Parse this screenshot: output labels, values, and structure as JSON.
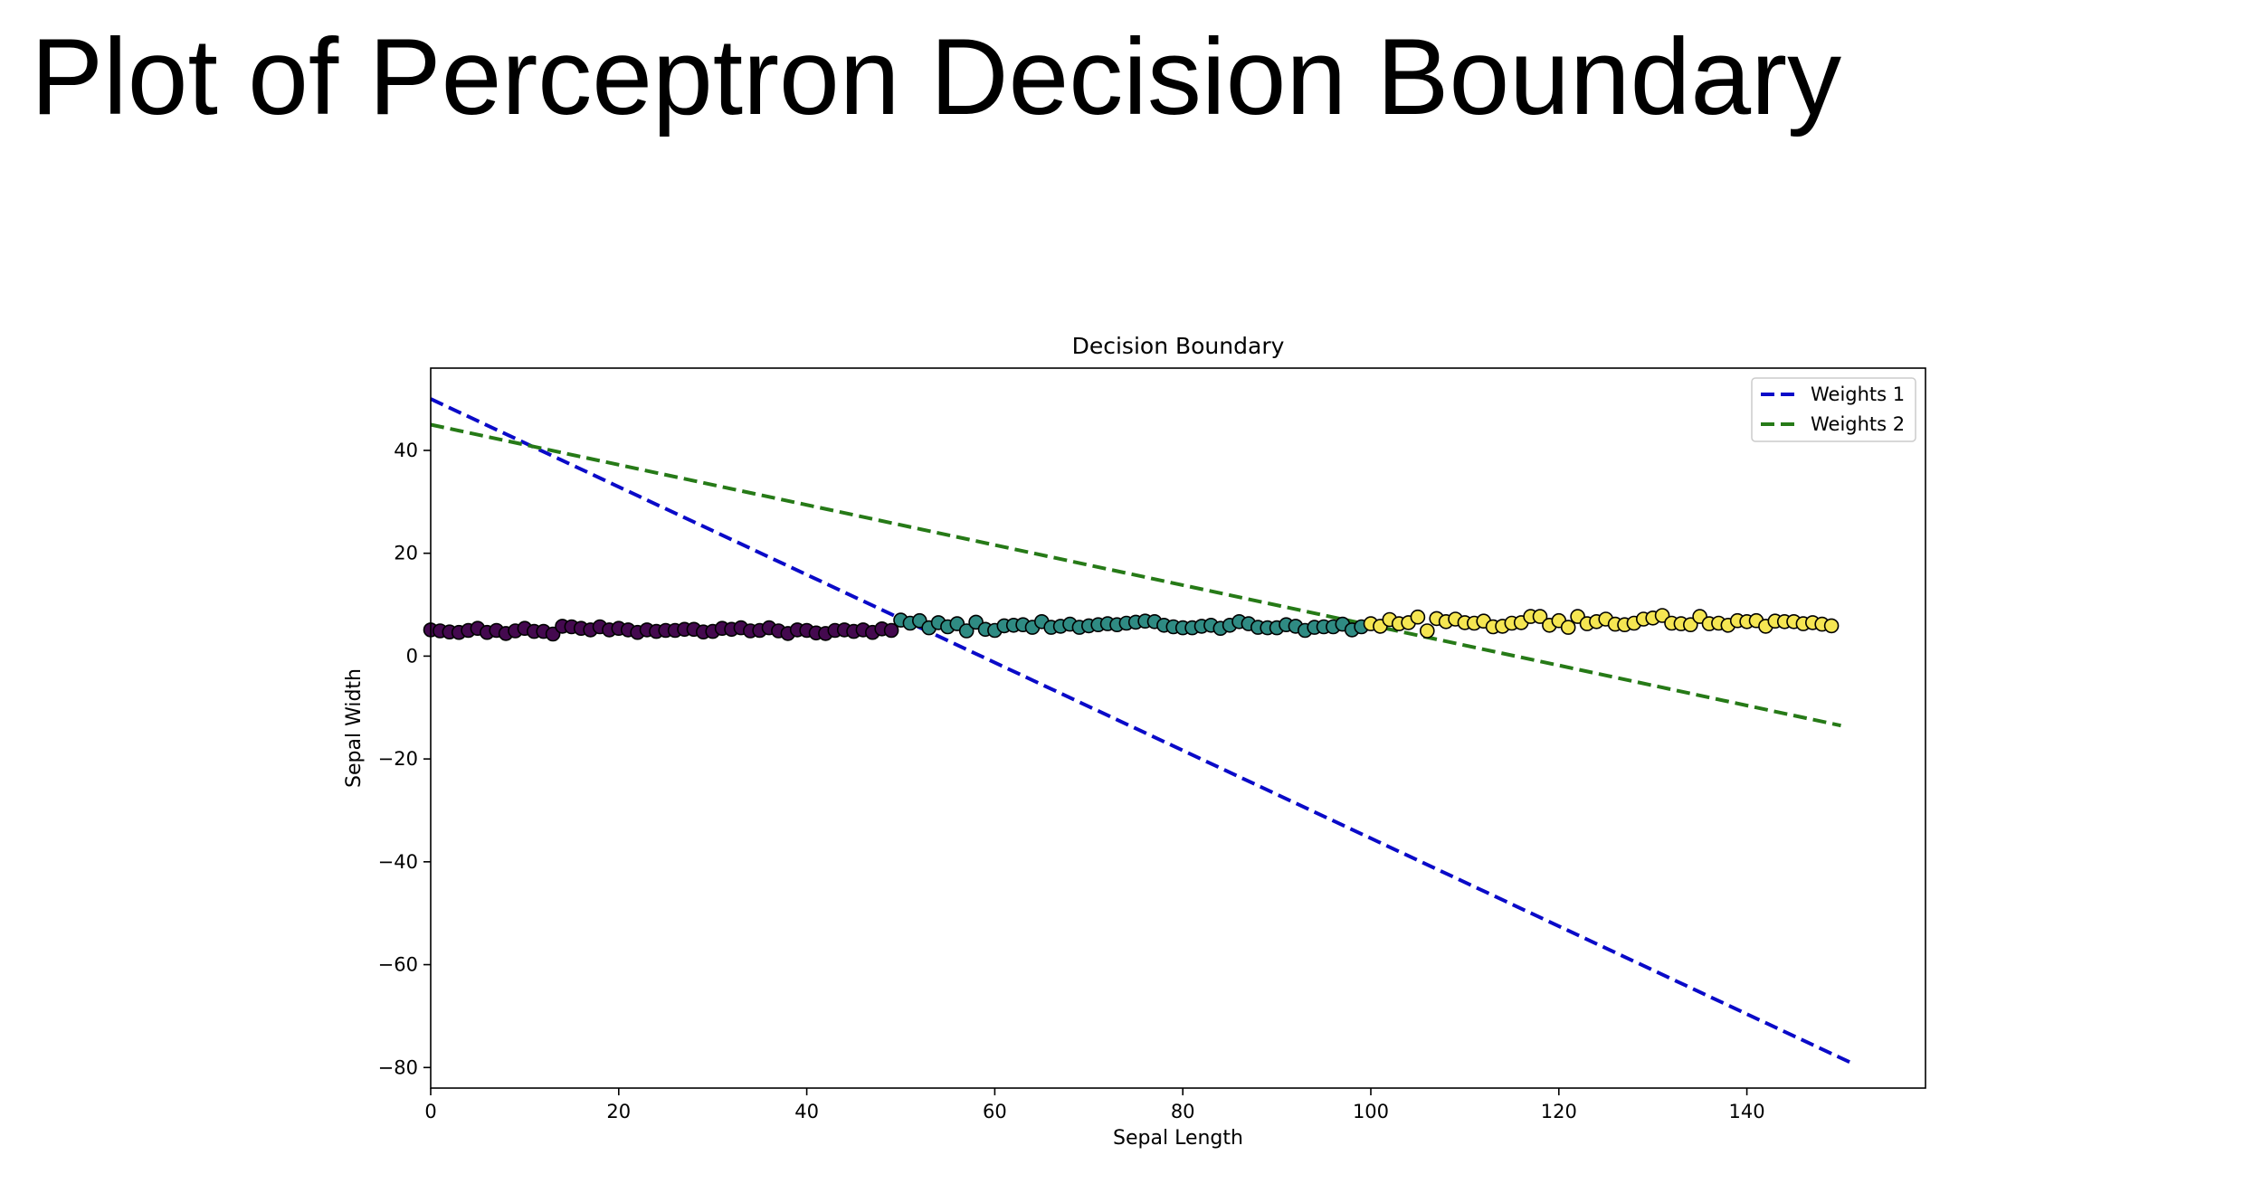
{
  "slide": {
    "title": "Plot of Perceptron Decision Boundary"
  },
  "chart_data": {
    "type": "scatter",
    "title": "Decision Boundary",
    "xlabel": "Sepal Length",
    "ylabel": "Sepal Width",
    "xlim": [
      0,
      159
    ],
    "ylim": [
      -84,
      56
    ],
    "xticks": [
      0,
      20,
      40,
      60,
      80,
      100,
      120,
      140
    ],
    "yticks": [
      -80,
      -60,
      -40,
      -20,
      0,
      20,
      40
    ],
    "xtick_labels": [
      "0",
      "20",
      "40",
      "60",
      "80",
      "100",
      "120",
      "140"
    ],
    "ytick_labels": [
      "−80",
      "−60",
      "−40",
      "−20",
      "0",
      "20",
      "40"
    ],
    "grid": false,
    "legend_position": "top-right",
    "lines": [
      {
        "name": "Weights 1",
        "style": "dashed",
        "color": "#0a0ac8",
        "x": [
          0,
          151
        ],
        "y": [
          50,
          -79
        ]
      },
      {
        "name": "Weights 2",
        "style": "dashed",
        "color": "#267a17",
        "x": [
          0,
          150
        ],
        "y": [
          45,
          -13.5
        ]
      }
    ],
    "scatter_groups": [
      {
        "color": "#44094f",
        "x": [
          0,
          1,
          2,
          3,
          4,
          5,
          6,
          7,
          8,
          9,
          10,
          11,
          12,
          13,
          14,
          15,
          16,
          17,
          18,
          19,
          20,
          21,
          22,
          23,
          24,
          25,
          26,
          27,
          28,
          29,
          30,
          31,
          32,
          33,
          34,
          35,
          36,
          37,
          38,
          39,
          40,
          41,
          42,
          43,
          44,
          45,
          46,
          47,
          48,
          49
        ],
        "y": [
          5.1,
          4.9,
          4.7,
          4.6,
          5.0,
          5.4,
          4.6,
          5.0,
          4.4,
          4.9,
          5.4,
          4.8,
          4.8,
          4.3,
          5.8,
          5.7,
          5.4,
          5.1,
          5.7,
          5.1,
          5.4,
          5.1,
          4.6,
          5.1,
          4.8,
          5.0,
          5.0,
          5.2,
          5.2,
          4.7,
          4.8,
          5.4,
          5.2,
          5.5,
          4.9,
          5.0,
          5.5,
          4.9,
          4.4,
          5.1,
          5.0,
          4.5,
          4.4,
          5.0,
          5.1,
          4.8,
          5.1,
          4.6,
          5.3,
          5.0
        ]
      },
      {
        "color": "#2f8b83",
        "x": [
          50,
          51,
          52,
          53,
          54,
          55,
          56,
          57,
          58,
          59,
          60,
          61,
          62,
          63,
          64,
          65,
          66,
          67,
          68,
          69,
          70,
          71,
          72,
          73,
          74,
          75,
          76,
          77,
          78,
          79,
          80,
          81,
          82,
          83,
          84,
          85,
          86,
          87,
          88,
          89,
          90,
          91,
          92,
          93,
          94,
          95,
          96,
          97,
          98,
          99
        ],
        "y": [
          7.0,
          6.4,
          6.9,
          5.5,
          6.5,
          5.7,
          6.3,
          4.9,
          6.6,
          5.2,
          5.0,
          5.9,
          6.0,
          6.1,
          5.6,
          6.7,
          5.6,
          5.8,
          6.2,
          5.6,
          5.9,
          6.1,
          6.3,
          6.1,
          6.4,
          6.6,
          6.8,
          6.7,
          6.0,
          5.7,
          5.5,
          5.5,
          5.8,
          6.0,
          5.4,
          6.0,
          6.7,
          6.3,
          5.6,
          5.5,
          5.5,
          6.1,
          5.8,
          5.0,
          5.6,
          5.7,
          5.7,
          6.2,
          5.1,
          5.7
        ]
      },
      {
        "color": "#f5e652",
        "x": [
          100,
          101,
          102,
          103,
          104,
          105,
          106,
          107,
          108,
          109,
          110,
          111,
          112,
          113,
          114,
          115,
          116,
          117,
          118,
          119,
          120,
          121,
          122,
          123,
          124,
          125,
          126,
          127,
          128,
          129,
          130,
          131,
          132,
          133,
          134,
          135,
          136,
          137,
          138,
          139,
          140,
          141,
          142,
          143,
          144,
          145,
          146,
          147,
          148,
          149
        ],
        "y": [
          6.3,
          5.8,
          7.1,
          6.3,
          6.5,
          7.6,
          4.9,
          7.3,
          6.7,
          7.2,
          6.5,
          6.4,
          6.8,
          5.7,
          5.8,
          6.4,
          6.5,
          7.7,
          7.7,
          6.0,
          6.9,
          5.6,
          7.7,
          6.3,
          6.7,
          7.2,
          6.2,
          6.1,
          6.4,
          7.2,
          7.4,
          7.9,
          6.4,
          6.3,
          6.1,
          7.7,
          6.3,
          6.4,
          6.0,
          6.9,
          6.7,
          6.9,
          5.8,
          6.8,
          6.7,
          6.7,
          6.3,
          6.5,
          6.2,
          5.9
        ]
      }
    ]
  },
  "colors": {
    "axis": "#000000",
    "marker_edge": "#000000",
    "legend_frame": "#cccccc"
  }
}
